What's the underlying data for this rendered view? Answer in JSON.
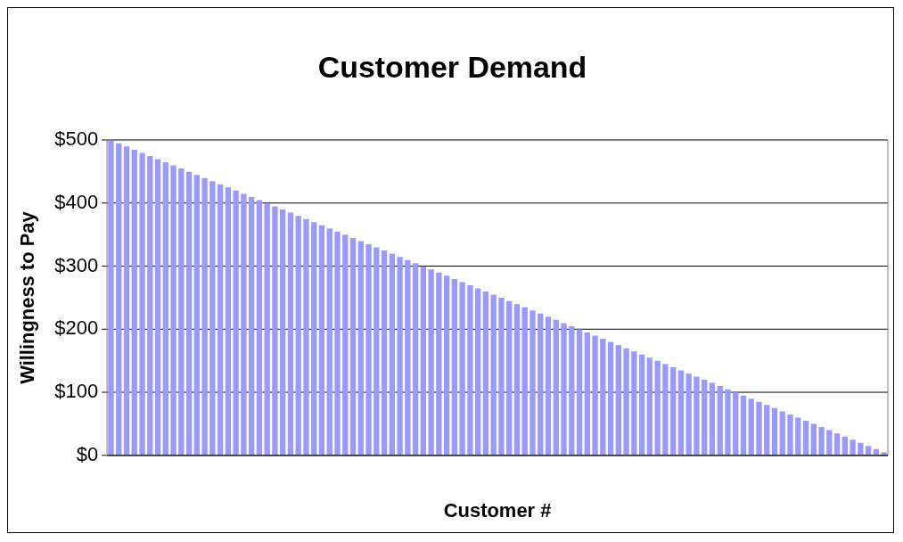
{
  "chart_data": {
    "type": "bar",
    "title": "Customer Demand",
    "xlabel": "Customer #",
    "ylabel": "Willingness to Pay",
    "categories": [
      null,
      null,
      null,
      null,
      null,
      null,
      null,
      null,
      null,
      null,
      null,
      null,
      null,
      null,
      null,
      null,
      null,
      null,
      null,
      null,
      null,
      null,
      null,
      null,
      null,
      null,
      null,
      null,
      null,
      null,
      null,
      null,
      null,
      null,
      null,
      null,
      null,
      null,
      null,
      null,
      null,
      null,
      null,
      null,
      null,
      null,
      null,
      null,
      null,
      null,
      null,
      null,
      null,
      null,
      null,
      null,
      null,
      null,
      null,
      null,
      null,
      null,
      null,
      null,
      null,
      null,
      null,
      null,
      null,
      null,
      null,
      null,
      null,
      null,
      null,
      null,
      null,
      null,
      null,
      null,
      null,
      null,
      null,
      null,
      null,
      null,
      null,
      null,
      null,
      null,
      null,
      null,
      null,
      null,
      null,
      null,
      null,
      null,
      null,
      null
    ],
    "values": [
      500,
      495,
      490,
      485,
      480,
      475,
      470,
      465,
      460,
      455,
      450,
      445,
      440,
      435,
      430,
      425,
      420,
      415,
      410,
      405,
      400,
      395,
      390,
      385,
      380,
      375,
      370,
      365,
      360,
      355,
      350,
      345,
      340,
      335,
      330,
      325,
      320,
      315,
      310,
      305,
      300,
      295,
      290,
      285,
      280,
      275,
      270,
      265,
      260,
      255,
      250,
      245,
      240,
      235,
      230,
      225,
      220,
      215,
      210,
      205,
      200,
      195,
      190,
      185,
      180,
      175,
      170,
      165,
      160,
      155,
      150,
      145,
      140,
      135,
      130,
      125,
      120,
      115,
      110,
      105,
      100,
      95,
      90,
      85,
      80,
      75,
      70,
      65,
      60,
      55,
      50,
      45,
      40,
      35,
      30,
      25,
      20,
      15,
      10,
      5
    ],
    "color": "#9999ff",
    "ylim": [
      0,
      500
    ],
    "yticks": [
      {
        "value": 0,
        "label": "$0"
      },
      {
        "value": 100,
        "label": "$100"
      },
      {
        "value": 200,
        "label": "$200"
      },
      {
        "value": 300,
        "label": "$300"
      },
      {
        "value": 400,
        "label": "$400"
      },
      {
        "value": 500,
        "label": "$500"
      }
    ],
    "grid": "y",
    "legend": false
  }
}
